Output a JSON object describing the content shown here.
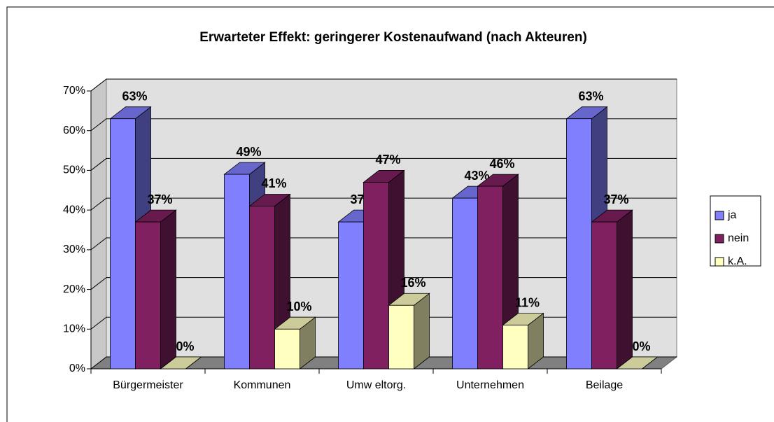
{
  "chart_data": {
    "type": "bar3d",
    "title": "Erwarteter Effekt: geringerer Kostenaufwand (nach Akteuren)",
    "categories": [
      "Bürgermeister",
      "Kommunen",
      "Umw eltorg.",
      "Unternehmen",
      "Beilage"
    ],
    "series": [
      {
        "name": "ja",
        "color": "#8080ff",
        "values": [
          63,
          49,
          37,
          43,
          63
        ],
        "value_labels": [
          "63%",
          "49%",
          "37%",
          "43%",
          "63%"
        ]
      },
      {
        "name": "nein",
        "color": "#802060",
        "values": [
          37,
          41,
          47,
          46,
          37
        ],
        "value_labels": [
          "37%",
          "41%",
          "47%",
          "46%",
          "37%"
        ]
      },
      {
        "name": "k.A.",
        "color": "#ffffc0",
        "values": [
          0,
          10,
          16,
          11,
          0
        ],
        "value_labels": [
          "0%",
          "10%",
          "16%",
          "11%",
          "0%"
        ]
      }
    ],
    "ylim": [
      0,
      70
    ],
    "yticks": [
      {
        "value": 0,
        "label": "0%"
      },
      {
        "value": 10,
        "label": "10%"
      },
      {
        "value": 20,
        "label": "20%"
      },
      {
        "value": 30,
        "label": "30%"
      },
      {
        "value": 40,
        "label": "40%"
      },
      {
        "value": 50,
        "label": "50%"
      },
      {
        "value": 60,
        "label": "60%"
      },
      {
        "value": 70,
        "label": "70%"
      }
    ],
    "grid": true,
    "legend": "right"
  }
}
